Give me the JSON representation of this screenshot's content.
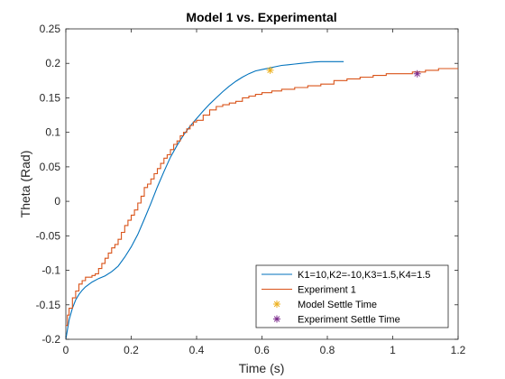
{
  "chart_data": {
    "type": "line",
    "title": "Model 1 vs. Experimental",
    "xlabel": "Time (s)",
    "ylabel": "Theta (Rad)",
    "xlim": [
      0,
      1.2
    ],
    "ylim": [
      -0.2,
      0.25
    ],
    "xticks": [
      0,
      0.2,
      0.4,
      0.6,
      0.8,
      1,
      1.2
    ],
    "xtick_labels": [
      "0",
      "0.2",
      "0.4",
      "0.6",
      "0.8",
      "1",
      "1.2"
    ],
    "yticks": [
      -0.2,
      -0.15,
      -0.1,
      -0.05,
      0,
      0.05,
      0.1,
      0.15,
      0.2,
      0.25
    ],
    "ytick_labels": [
      "-0.2",
      "-0.15",
      "-0.1",
      "-0.05",
      "0",
      "0.05",
      "0.1",
      "0.15",
      "0.2",
      "0.25"
    ],
    "grid": false,
    "legend_position": "bottom-right",
    "series": [
      {
        "name": "K1=10,K2=-10,K3=1.5,K4=1.5",
        "kind": "line",
        "color": "#0072BD",
        "x": [
          0,
          0.01,
          0.02,
          0.03,
          0.04,
          0.05,
          0.06,
          0.08,
          0.1,
          0.12,
          0.14,
          0.16,
          0.18,
          0.2,
          0.22,
          0.24,
          0.26,
          0.28,
          0.3,
          0.32,
          0.34,
          0.36,
          0.38,
          0.4,
          0.42,
          0.44,
          0.46,
          0.48,
          0.5,
          0.52,
          0.54,
          0.56,
          0.58,
          0.6,
          0.62,
          0.64,
          0.66,
          0.68,
          0.7,
          0.72,
          0.74,
          0.76,
          0.78,
          0.8,
          0.82,
          0.84,
          0.85
        ],
        "y": [
          -0.2,
          -0.172,
          -0.155,
          -0.143,
          -0.135,
          -0.129,
          -0.124,
          -0.117,
          -0.112,
          -0.108,
          -0.102,
          -0.094,
          -0.081,
          -0.066,
          -0.048,
          -0.026,
          -0.003,
          0.021,
          0.043,
          0.064,
          0.081,
          0.096,
          0.109,
          0.12,
          0.131,
          0.141,
          0.15,
          0.159,
          0.167,
          0.174,
          0.18,
          0.185,
          0.189,
          0.191,
          0.193,
          0.195,
          0.197,
          0.198,
          0.199,
          0.2,
          0.201,
          0.202,
          0.2025,
          0.2025,
          0.2025,
          0.2025,
          0.2025
        ]
      },
      {
        "name": "Experiment 1",
        "kind": "step",
        "color": "#D95319",
        "x": [
          0,
          0.005,
          0.01,
          0.02,
          0.03,
          0.04,
          0.05,
          0.06,
          0.07,
          0.08,
          0.09,
          0.1,
          0.11,
          0.12,
          0.13,
          0.14,
          0.15,
          0.16,
          0.17,
          0.18,
          0.19,
          0.2,
          0.21,
          0.22,
          0.23,
          0.24,
          0.25,
          0.26,
          0.27,
          0.28,
          0.29,
          0.3,
          0.31,
          0.32,
          0.33,
          0.34,
          0.35,
          0.36,
          0.37,
          0.38,
          0.39,
          0.4,
          0.42,
          0.44,
          0.46,
          0.48,
          0.5,
          0.52,
          0.54,
          0.56,
          0.58,
          0.6,
          0.63,
          0.66,
          0.7,
          0.74,
          0.78,
          0.82,
          0.86,
          0.9,
          0.94,
          0.98,
          1.02,
          1.06,
          1.1,
          1.14,
          1.18,
          1.2
        ],
        "y": [
          -0.18,
          -0.165,
          -0.155,
          -0.14,
          -0.13,
          -0.12,
          -0.115,
          -0.11,
          -0.11,
          -0.108,
          -0.105,
          -0.098,
          -0.09,
          -0.083,
          -0.075,
          -0.068,
          -0.062,
          -0.055,
          -0.045,
          -0.035,
          -0.028,
          -0.02,
          -0.012,
          -0.003,
          0.008,
          0.02,
          0.025,
          0.032,
          0.04,
          0.048,
          0.055,
          0.062,
          0.068,
          0.075,
          0.082,
          0.088,
          0.094,
          0.1,
          0.105,
          0.11,
          0.115,
          0.118,
          0.125,
          0.132,
          0.137,
          0.14,
          0.143,
          0.146,
          0.149,
          0.152,
          0.155,
          0.158,
          0.16,
          0.162,
          0.165,
          0.168,
          0.171,
          0.175,
          0.177,
          0.18,
          0.182,
          0.184,
          0.186,
          0.188,
          0.19,
          0.192,
          0.193,
          0.193
        ]
      },
      {
        "name": "Model Settle Time",
        "kind": "marker",
        "marker": "star",
        "color": "#EDB120",
        "x": [
          0.625
        ],
        "y": [
          0.19
        ]
      },
      {
        "name": "Experiment Settle Time",
        "kind": "marker",
        "marker": "star",
        "color": "#7E2F8E",
        "x": [
          1.075
        ],
        "y": [
          0.185
        ]
      }
    ]
  }
}
